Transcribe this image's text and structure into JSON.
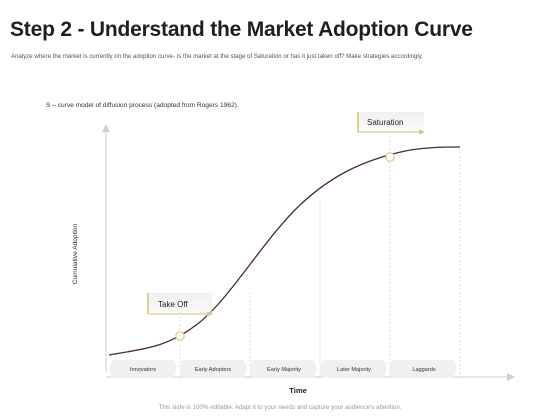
{
  "slide": {
    "title": "Step 2 - Understand the Market Adoption Curve",
    "subtitle": "Analyze where the market is currently on the adoption curve- Is the market at the stage of Saturation or has it just taken off? Make strategies accordingly.",
    "footer": "This slide is 100% editable. Adapt it to your needs and capture your audience's attention."
  },
  "diagram": {
    "caption": "S – curve model of diffusion process (adopted from Rogers 1962).",
    "y_axis_label": "Cumulative Adoption",
    "x_axis_label": "Time",
    "callouts": {
      "take_off": "Take Off",
      "saturation": "Saturation"
    },
    "segments": [
      "Innovators",
      "Early Adopters",
      "Early Majority",
      "Later Majority",
      "Laggards"
    ],
    "colors": {
      "curve": "#4a2a3e",
      "accent": "#d9c27a",
      "segment_fill": "#f0f0f0",
      "axis": "#cfcfcf",
      "dashed": "#d6d6d6"
    }
  }
}
